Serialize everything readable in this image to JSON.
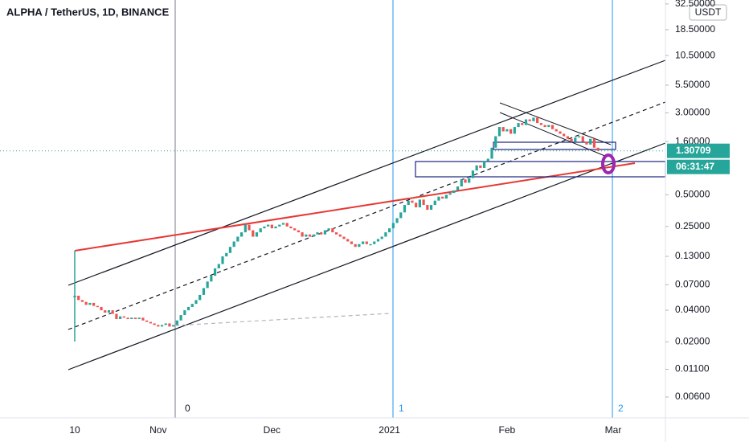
{
  "chart_data": {
    "type": "candlestick",
    "title": "ALPHA / TetherUS, 1D, BINANCE",
    "currency": "USDT",
    "log_scale": true,
    "up_color": "#26a69a",
    "down_color": "#ef5350",
    "last_price": 1.30709,
    "countdown": "06:31:47",
    "ylim": [
      0.0038,
      35.4
    ],
    "yticks": [
      {
        "value": 32.5,
        "label": "32.50000"
      },
      {
        "value": 18.5,
        "label": "18.50000"
      },
      {
        "value": 10.5,
        "label": "10.50000"
      },
      {
        "value": 5.5,
        "label": "5.50000"
      },
      {
        "value": 3,
        "label": "3.00000"
      },
      {
        "value": 1.6,
        "label": "1.60000"
      },
      {
        "value": 0.5,
        "label": "0.50000"
      },
      {
        "value": 0.25,
        "label": "0.25000"
      },
      {
        "value": 0.13,
        "label": "0.13000"
      },
      {
        "value": 0.07,
        "label": "0.07000"
      },
      {
        "value": 0.04,
        "label": "0.04000"
      },
      {
        "value": 0.02,
        "label": "0.02000"
      },
      {
        "value": 0.011,
        "label": "0.01100"
      },
      {
        "value": 0.006,
        "label": "0.00600"
      }
    ],
    "markers": [
      "0",
      "1",
      "2"
    ],
    "categories": [
      "10",
      null,
      null,
      null,
      null,
      null,
      null,
      null,
      null,
      null,
      null,
      null,
      null,
      null,
      null,
      null,
      null,
      null,
      null,
      null,
      null,
      null,
      "Nov",
      null,
      null,
      null,
      null,
      null,
      null,
      null,
      null,
      null,
      null,
      null,
      null,
      null,
      null,
      null,
      null,
      null,
      null,
      null,
      null,
      null,
      null,
      null,
      null,
      null,
      null,
      null,
      null,
      null,
      "Dec",
      null,
      null,
      null,
      null,
      null,
      null,
      null,
      null,
      null,
      null,
      null,
      null,
      null,
      null,
      null,
      null,
      null,
      null,
      null,
      null,
      null,
      null,
      null,
      null,
      null,
      null,
      null,
      null,
      null,
      null,
      "2021",
      null,
      null,
      null,
      null,
      null,
      null,
      null,
      null,
      null,
      null,
      null,
      null,
      null,
      null,
      null,
      null,
      null,
      null,
      null,
      null,
      null,
      null,
      null,
      null,
      null,
      null,
      null,
      null,
      null,
      null,
      "Feb",
      null,
      null,
      null,
      null,
      null,
      null,
      null,
      null,
      null,
      null,
      null,
      null,
      null,
      null,
      null,
      null,
      null,
      null,
      null,
      null,
      null,
      null,
      null,
      null,
      null,
      null,
      null,
      "Mar"
    ],
    "values": [
      0.055,
      0.05,
      0.048,
      0.045,
      0.047,
      0.044,
      0.043,
      0.04,
      0.038,
      0.04,
      0.037,
      0.033,
      0.035,
      0.034,
      0.033,
      0.034,
      0.033,
      0.034,
      0.032,
      0.031,
      0.03,
      0.029,
      0.028,
      0.029,
      0.03,
      0.028,
      0.029,
      0.032,
      0.036,
      0.04,
      0.043,
      0.046,
      0.05,
      0.056,
      0.065,
      0.075,
      0.085,
      0.1,
      0.11,
      0.13,
      0.14,
      0.16,
      0.18,
      0.2,
      0.22,
      0.26,
      0.23,
      0.2,
      0.22,
      0.24,
      0.25,
      0.26,
      0.24,
      0.25,
      0.26,
      0.27,
      0.25,
      0.24,
      0.23,
      0.22,
      0.2,
      0.21,
      0.2,
      0.21,
      0.22,
      0.21,
      0.23,
      0.24,
      0.22,
      0.21,
      0.2,
      0.19,
      0.18,
      0.17,
      0.16,
      0.17,
      0.18,
      0.17,
      0.17,
      0.18,
      0.19,
      0.2,
      0.22,
      0.24,
      0.27,
      0.3,
      0.34,
      0.4,
      0.44,
      0.42,
      0.38,
      0.45,
      0.4,
      0.36,
      0.4,
      0.44,
      0.48,
      0.46,
      0.5,
      0.52,
      0.55,
      0.6,
      0.7,
      0.65,
      0.72,
      0.85,
      0.95,
      0.9,
      1.05,
      1.1,
      1.4,
      1.8,
      2.2,
      2.0,
      2.1,
      1.9,
      2.2,
      2.4,
      2.3,
      2.6,
      2.5,
      2.7,
      2.4,
      2.3,
      2.2,
      2.3,
      2.1,
      2.0,
      1.9,
      1.8,
      1.7,
      1.6,
      1.75,
      1.8,
      1.6,
      1.5,
      1.7,
      1.4,
      1.307,
      null,
      null,
      null,
      null
    ]
  }
}
